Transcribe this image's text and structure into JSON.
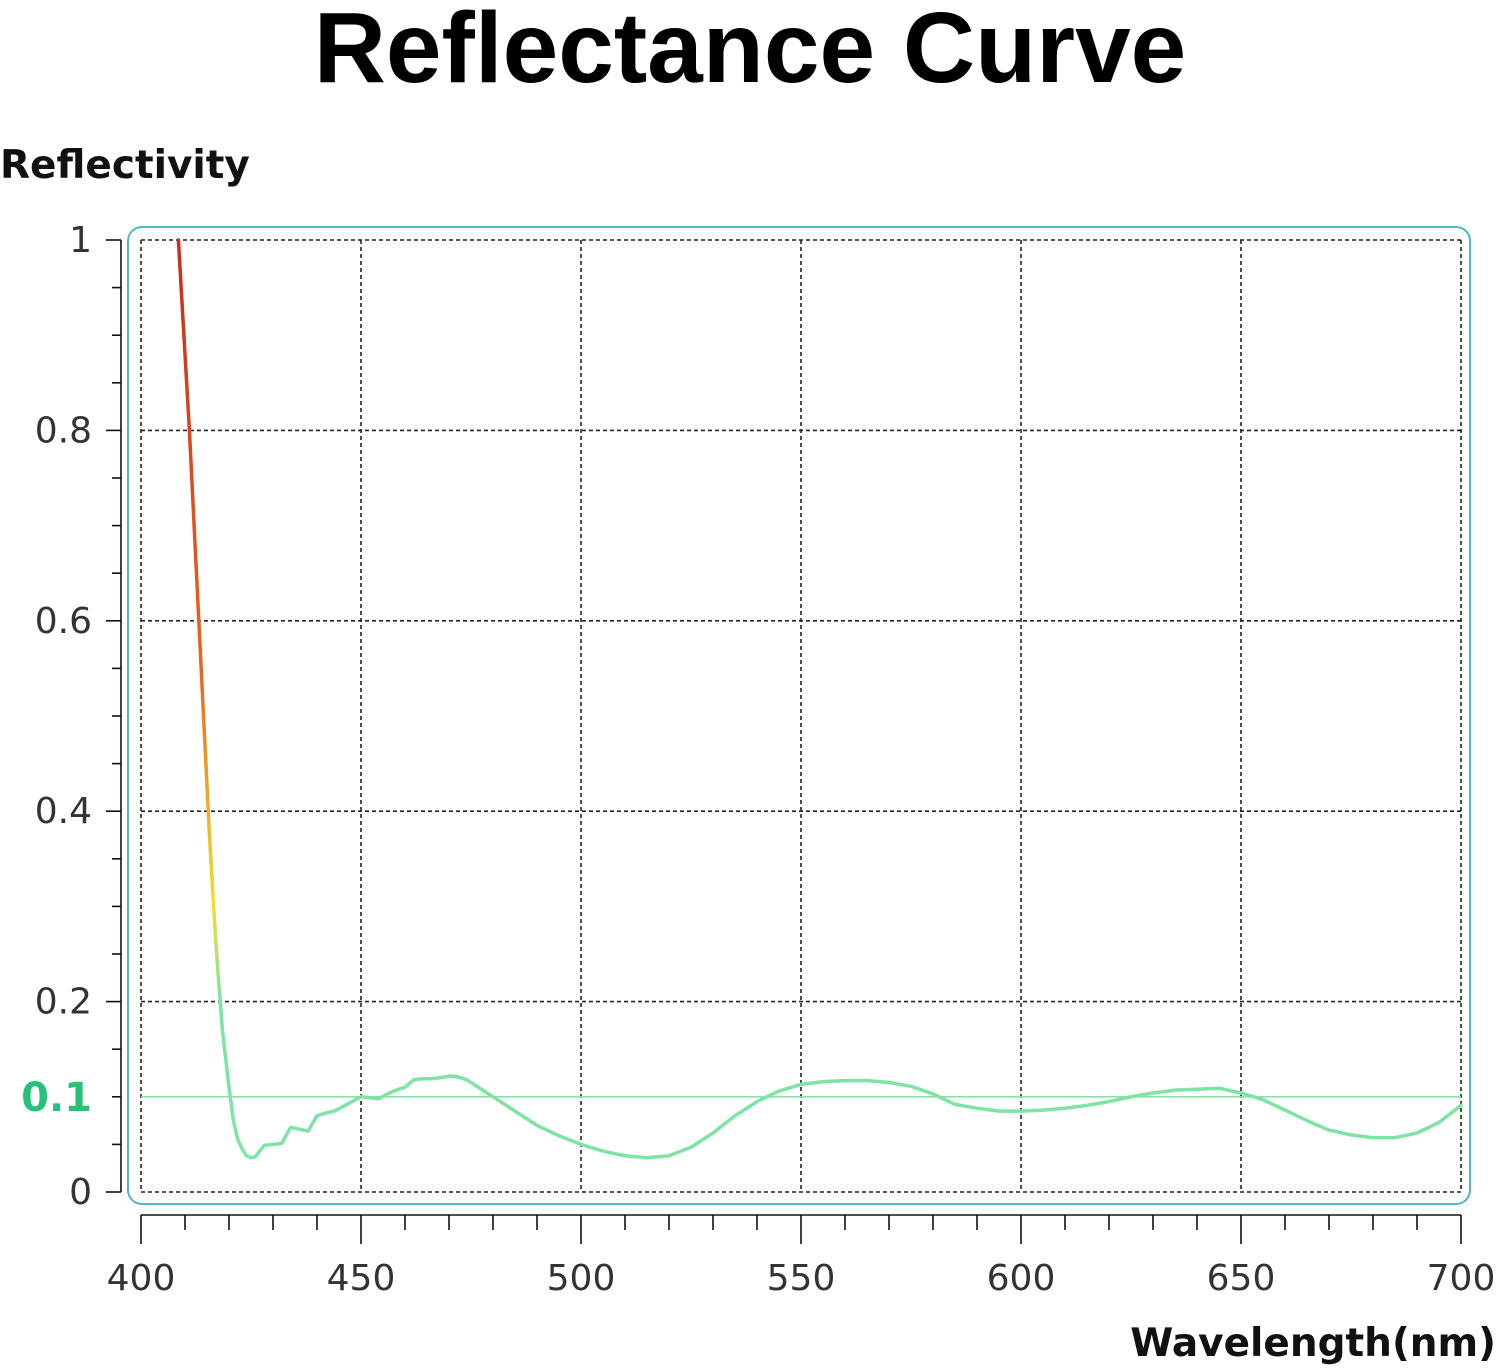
{
  "chart_data": {
    "type": "line",
    "title": "Reflectance Curve",
    "xlabel": "Wavelength(nm)",
    "ylabel": "Reflectivity",
    "xlim": [
      400,
      700
    ],
    "ylim": [
      0,
      1
    ],
    "x_ticks": [
      "400",
      "450",
      "500",
      "550",
      "600",
      "650",
      "700"
    ],
    "y_ticks": [
      "0",
      "0.2",
      "0.4",
      "0.6",
      "0.8",
      "1"
    ],
    "reference_line": {
      "value": 0.1,
      "label": "0.1",
      "color": "#27c27a"
    },
    "grid": true,
    "legend": "none",
    "series": [
      {
        "color_gradient": [
          "#cc2a1a",
          "#e8661f",
          "#f0e030",
          "#7de4a3"
        ],
        "x": [
          408.5,
          409.5,
          411,
          412.5,
          414,
          415.5,
          416.5,
          417.5,
          418.5,
          420,
          421,
          422,
          423,
          424,
          425,
          426,
          428,
          430,
          432,
          434,
          436,
          438,
          440,
          442,
          444,
          446,
          448,
          450,
          452,
          454,
          456,
          458,
          460,
          462,
          464,
          466,
          468,
          470,
          472,
          474,
          476,
          480,
          485,
          490,
          495,
          500,
          505,
          510,
          515,
          520,
          525,
          530,
          535,
          540,
          545,
          550,
          555,
          560,
          565,
          570,
          575,
          580,
          585,
          590,
          595,
          600,
          605,
          610,
          615,
          620,
          625,
          630,
          635,
          640,
          645,
          650,
          655,
          660,
          665,
          670,
          675,
          680,
          685,
          690,
          695,
          700
        ],
        "y": [
          1.0,
          0.92,
          0.8,
          0.66,
          0.52,
          0.38,
          0.3,
          0.23,
          0.17,
          0.11,
          0.075,
          0.055,
          0.045,
          0.038,
          0.036,
          0.037,
          0.049,
          0.05,
          0.051,
          0.068,
          0.066,
          0.064,
          0.08,
          0.083,
          0.085,
          0.09,
          0.095,
          0.1,
          0.099,
          0.098,
          0.103,
          0.107,
          0.11,
          0.118,
          0.119,
          0.119,
          0.12,
          0.122,
          0.121,
          0.118,
          0.112,
          0.1,
          0.085,
          0.07,
          0.059,
          0.05,
          0.043,
          0.038,
          0.036,
          0.038,
          0.047,
          0.062,
          0.08,
          0.095,
          0.106,
          0.113,
          0.116,
          0.117,
          0.117,
          0.115,
          0.111,
          0.103,
          0.092,
          0.088,
          0.085,
          0.085,
          0.086,
          0.088,
          0.091,
          0.095,
          0.1,
          0.104,
          0.107,
          0.108,
          0.109,
          0.104,
          0.097,
          0.086,
          0.075,
          0.065,
          0.06,
          0.057,
          0.057,
          0.062,
          0.073,
          0.091
        ]
      }
    ]
  }
}
